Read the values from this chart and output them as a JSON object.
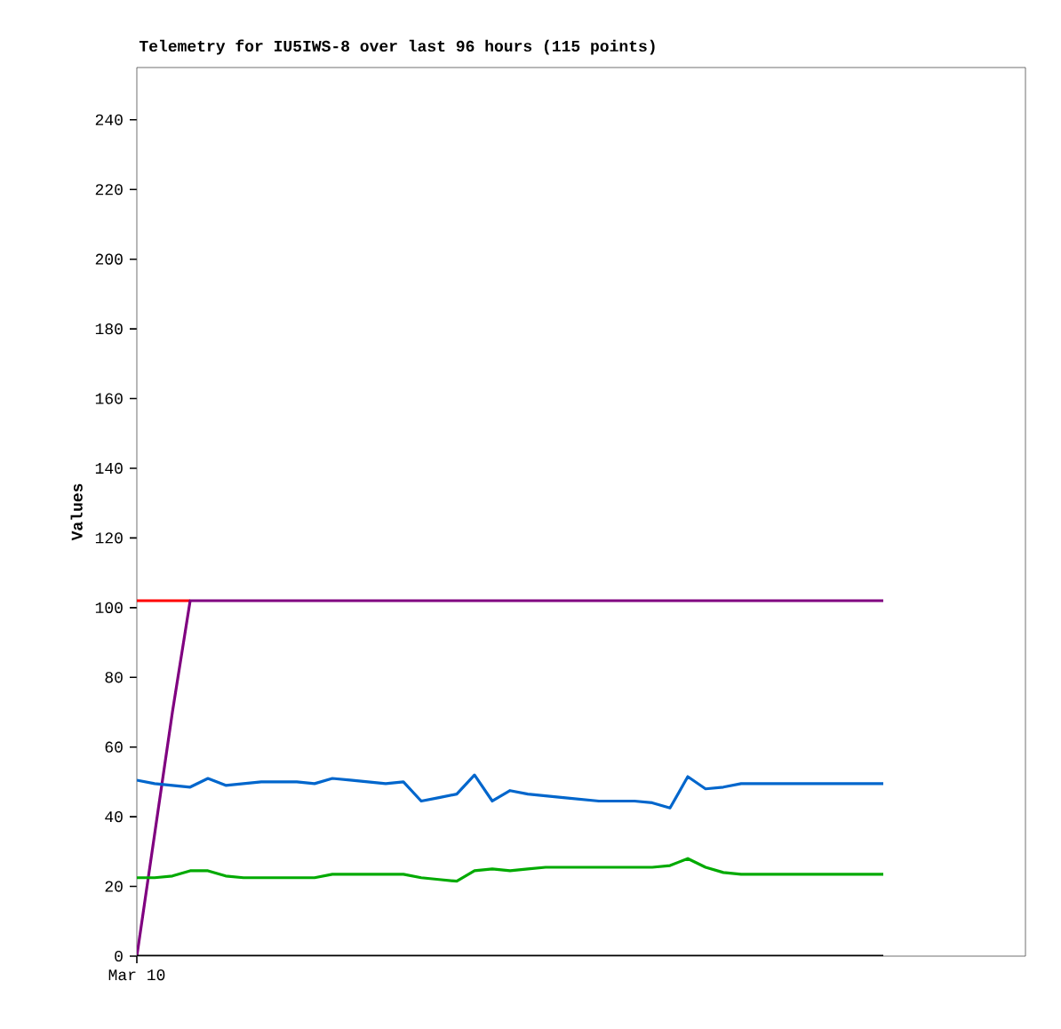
{
  "chart_data": {
    "type": "line",
    "title": "Telemetry for IU5IWS-8 over last 96 hours (115 points)",
    "ylabel": "Values",
    "categories": [
      "Mar 10",
      null,
      null,
      null,
      null,
      null,
      null,
      null,
      null,
      null,
      null,
      null,
      null,
      null,
      null,
      null,
      null,
      null,
      null,
      null,
      null,
      null,
      null,
      null,
      null,
      null,
      null,
      null,
      null,
      null,
      null,
      null,
      null,
      null,
      null,
      null,
      null,
      null,
      null,
      null,
      null,
      null,
      null,
      null,
      null,
      null,
      null,
      null,
      null,
      null,
      null
    ],
    "ylim": [
      0,
      255
    ],
    "yticks": [
      0,
      20,
      40,
      60,
      80,
      100,
      120,
      140,
      160,
      180,
      200,
      220,
      240
    ],
    "grid": false,
    "marker": "none",
    "line_style": "solid",
    "series": [
      {
        "color": "#ff0000",
        "values": [
          102,
          102,
          102,
          102,
          null,
          null,
          null,
          null,
          null,
          null,
          null,
          null,
          null,
          null,
          null,
          null,
          null,
          null,
          null,
          null,
          null,
          null,
          null,
          null,
          null,
          null,
          null,
          null,
          null,
          null,
          null,
          null,
          null,
          null,
          null,
          null,
          null,
          null,
          null,
          null,
          null,
          null,
          null,
          null,
          null,
          null,
          null,
          null,
          null,
          null,
          null
        ]
      },
      {
        "color": "#800080",
        "values": [
          0,
          35,
          70,
          102,
          102,
          102,
          102,
          102,
          102,
          102,
          102,
          102,
          102,
          102,
          102,
          102,
          102,
          102,
          102,
          102,
          102,
          102,
          102,
          102,
          102,
          102,
          102,
          102,
          102,
          102,
          102,
          102,
          102,
          102,
          102,
          102,
          102,
          102,
          102,
          102,
          102,
          102,
          102,
          null,
          null,
          null,
          null,
          null,
          null,
          null,
          null
        ]
      },
      {
        "color": "#0066cc",
        "values": [
          50.5,
          49.5,
          49,
          48.5,
          51,
          49,
          49.5,
          50,
          50,
          50,
          49.5,
          51,
          50.5,
          50,
          49.5,
          50,
          44.5,
          45.5,
          46.5,
          52,
          44.5,
          47.5,
          46.5,
          46,
          45.5,
          45,
          44.5,
          44.5,
          44.5,
          44,
          42.5,
          51.5,
          48,
          48.5,
          49.5,
          49.5,
          49.5,
          49.5,
          49.5,
          49.5,
          49.5,
          49.5,
          49.5,
          null,
          null,
          null,
          null,
          null,
          null,
          null,
          null
        ]
      },
      {
        "color": "#00aa00",
        "values": [
          22.5,
          22.5,
          23,
          24.5,
          24.5,
          23,
          22.5,
          22.5,
          22.5,
          22.5,
          22.5,
          23.5,
          23.5,
          23.5,
          23.5,
          23.5,
          22.5,
          22,
          21.5,
          24.5,
          25,
          24.5,
          25,
          25.5,
          25.5,
          25.5,
          25.5,
          25.5,
          25.5,
          25.5,
          26,
          28,
          25.5,
          24,
          23.5,
          23.5,
          23.5,
          23.5,
          23.5,
          23.5,
          23.5,
          23.5,
          23.5,
          null,
          null,
          null,
          null,
          null,
          null,
          null,
          null
        ]
      },
      {
        "color": "#000000",
        "values": [
          0,
          0,
          0,
          0,
          0,
          0,
          0,
          0,
          0,
          0,
          0,
          0,
          0,
          0,
          0,
          0,
          0,
          0,
          0,
          0,
          0,
          0,
          0,
          0,
          0,
          0,
          0,
          0,
          0,
          0,
          0,
          0,
          0,
          0,
          0,
          0,
          0,
          0,
          0,
          0,
          0,
          0,
          0,
          null,
          null,
          null,
          null,
          null,
          null,
          null,
          null
        ]
      }
    ]
  }
}
